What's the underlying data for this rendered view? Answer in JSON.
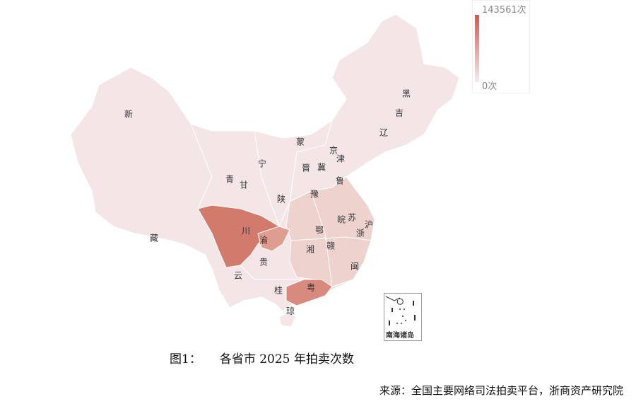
{
  "legend": {
    "max": "143561次",
    "min": "0次",
    "color_high": "#d25a4c",
    "color_low": "#f6eaea"
  },
  "provinces": [
    "新",
    "藏",
    "青",
    "甘",
    "宁",
    "蒙",
    "黑",
    "吉",
    "辽",
    "京",
    "津",
    "冀",
    "晋",
    "鲁",
    "陕",
    "豫",
    "川",
    "渝",
    "鄂",
    "皖",
    "苏",
    "沪",
    "浙",
    "湘",
    "赣",
    "贵",
    "云",
    "桂",
    "粤",
    "闽",
    "琼"
  ],
  "inset_label": "南海诸岛",
  "caption": {
    "figure": "图1：",
    "title": "各省市 2025 年拍卖次数"
  },
  "source": "来源：全国主要网络司法拍卖平台，浙商资产研究院"
}
